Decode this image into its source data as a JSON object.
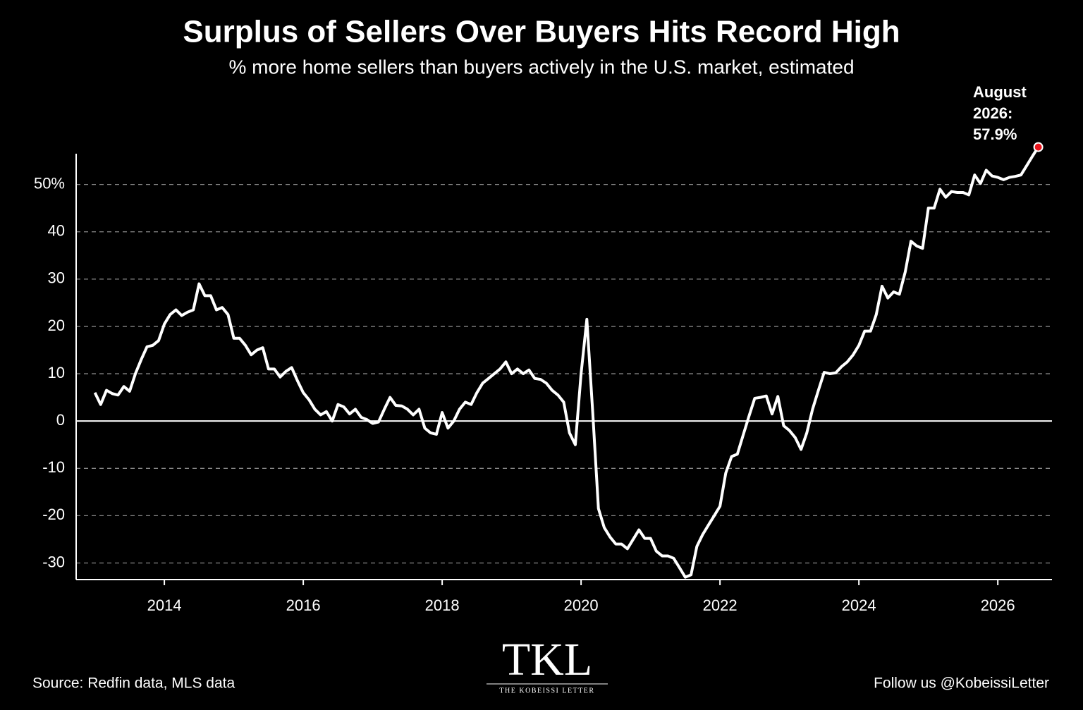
{
  "chart_data": {
    "type": "line",
    "title": "Surplus of Sellers Over Buyers Hits Record High",
    "subtitle": "% more home sellers than buyers actively in the U.S. market, estimated",
    "x": [
      2013,
      2013.083,
      2013.167,
      2013.25,
      2013.333,
      2013.417,
      2013.5,
      2013.583,
      2013.667,
      2013.75,
      2013.833,
      2013.917,
      2014,
      2014.083,
      2014.167,
      2014.25,
      2014.333,
      2014.417,
      2014.5,
      2014.583,
      2014.667,
      2014.75,
      2014.833,
      2014.917,
      2015,
      2015.083,
      2015.167,
      2015.25,
      2015.333,
      2015.417,
      2015.5,
      2015.583,
      2015.667,
      2015.75,
      2015.833,
      2015.917,
      2016,
      2016.083,
      2016.167,
      2016.25,
      2016.333,
      2016.417,
      2016.5,
      2016.583,
      2016.667,
      2016.75,
      2016.833,
      2016.917,
      2017,
      2017.083,
      2017.167,
      2017.25,
      2017.333,
      2017.417,
      2017.5,
      2017.583,
      2017.667,
      2017.75,
      2017.833,
      2017.917,
      2018,
      2018.083,
      2018.167,
      2018.25,
      2018.333,
      2018.417,
      2018.5,
      2018.583,
      2018.667,
      2018.75,
      2018.833,
      2018.917,
      2019,
      2019.083,
      2019.167,
      2019.25,
      2019.333,
      2019.417,
      2019.5,
      2019.583,
      2019.667,
      2019.75,
      2019.833,
      2019.917,
      2020,
      2020.083,
      2020.167,
      2020.25,
      2020.333,
      2020.417,
      2020.5,
      2020.583,
      2020.667,
      2020.75,
      2020.833,
      2020.917,
      2021,
      2021.083,
      2021.167,
      2021.25,
      2021.333,
      2021.417,
      2021.5,
      2021.583,
      2021.667,
      2021.75,
      2021.833,
      2021.917,
      2022,
      2022.083,
      2022.167,
      2022.25,
      2022.333,
      2022.417,
      2022.5,
      2022.583,
      2022.667,
      2022.75,
      2022.833,
      2022.917,
      2023,
      2023.083,
      2023.167,
      2023.25,
      2023.333,
      2023.417,
      2023.5,
      2023.583,
      2023.667,
      2023.75,
      2023.833,
      2023.917,
      2024,
      2024.083,
      2024.167,
      2024.25,
      2024.333,
      2024.417,
      2024.5,
      2024.583,
      2024.667,
      2024.75,
      2024.833,
      2024.917,
      2025,
      2025.083,
      2025.167,
      2025.25,
      2025.333,
      2025.417,
      2025.5,
      2025.583,
      2025.667,
      2025.75,
      2025.833,
      2025.917,
      2026,
      2026.083,
      2026.167,
      2026.25,
      2026.333,
      2026.417,
      2026.5,
      2026.583
    ],
    "series": [
      {
        "color": "#ffffff",
        "values": [
          6,
          3.5,
          6.5,
          5.8,
          5.5,
          7.3,
          6.3,
          10,
          13,
          15.7,
          16,
          17,
          20.5,
          22.5,
          23.5,
          22.3,
          23,
          23.5,
          29,
          26.5,
          26.5,
          23.5,
          24,
          22.5,
          17.5,
          17.5,
          16,
          14,
          15,
          15.5,
          11,
          11,
          9.3,
          10.5,
          11.3,
          8.5,
          6,
          4.5,
          2.5,
          1.3,
          2,
          0,
          3.5,
          3,
          1.5,
          2.5,
          0.8,
          0.3,
          -0.5,
          -0.2,
          2.5,
          5,
          3.3,
          3.2,
          2.5,
          1.3,
          2.5,
          -1.5,
          -2.5,
          -2.8,
          1.8,
          -1.5,
          0,
          2.5,
          4,
          3.5,
          6,
          8,
          9,
          10,
          11,
          12.5,
          10,
          11,
          10,
          10.8,
          9,
          8.8,
          8,
          6.5,
          5.5,
          4,
          -2.5,
          -5,
          10,
          21.5,
          2,
          -18.5,
          -22.5,
          -24.5,
          -26,
          -26,
          -27,
          -25,
          -23,
          -24.8,
          -24.8,
          -27.5,
          -28.5,
          -28.5,
          -29,
          -31,
          -33,
          -32.5,
          -26.5,
          -24,
          -22,
          -20,
          -18,
          -11,
          -7.5,
          -7,
          -3,
          1,
          4.8,
          5,
          5.3,
          1.5,
          5.2,
          -1,
          -2,
          -3.5,
          -6,
          -2.5,
          2.5,
          6.5,
          10.3,
          10,
          10.2,
          11.5,
          12.5,
          14,
          16,
          19,
          19,
          22.5,
          28.5,
          26,
          27.3,
          26.8,
          31.5,
          38,
          37,
          36.5,
          45,
          45,
          49,
          47.3,
          48.5,
          48.3,
          48.3,
          47.8,
          52,
          50.2,
          53,
          51.8,
          51.5,
          51,
          51.5,
          51.7,
          52,
          54,
          56,
          57.9
        ]
      }
    ],
    "xlim": [
      2012.73,
      2026.78
    ],
    "ylim": [
      -33.5,
      56.5
    ],
    "xticks": [
      2014,
      2016,
      2018,
      2020,
      2022,
      2024,
      2026
    ],
    "yticks": [
      -30,
      -20,
      -10,
      0,
      10,
      20,
      30,
      40,
      {
        "value": 50,
        "label": "50%"
      }
    ],
    "grid": true,
    "highlight_color": "#e8141c",
    "annotation": [
      "August",
      "2026:",
      "57.9%"
    ]
  },
  "footer": {
    "source": "Source: Redfin data, MLS data",
    "logo": "TKL",
    "logo_subtitle": "THE KOBEISSI LETTER",
    "follow": "Follow us @KobeissiLetter"
  }
}
